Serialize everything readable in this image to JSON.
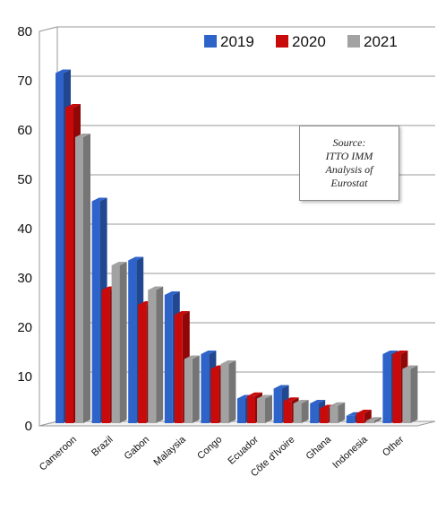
{
  "chart_data": {
    "type": "bar",
    "categories": [
      "Cameroon",
      "Brazil",
      "Gabon",
      "Malaysia",
      "Congo",
      "Ecuador",
      "Côte d'Ivoire",
      "Ghana",
      "Indonesia",
      "Other"
    ],
    "series": [
      {
        "name": "2019",
        "color": "#2e63c9",
        "values": [
          71,
          45,
          33,
          26,
          14,
          5,
          7,
          4,
          1.5,
          14
        ]
      },
      {
        "name": "2020",
        "color": "#c80a0a",
        "values": [
          64,
          27,
          24,
          22,
          11,
          5.5,
          4.5,
          3,
          2,
          14
        ]
      },
      {
        "name": "2021",
        "color": "#a2a2a2",
        "values": [
          58,
          32,
          27,
          13,
          12,
          5,
          4,
          3.5,
          0.5,
          11
        ]
      }
    ],
    "ylim": [
      0,
      80
    ],
    "yticks": [
      0,
      10,
      20,
      30,
      40,
      50,
      60,
      70,
      80
    ],
    "legend_position": "top-right",
    "annotation": "Source:\nITTO IMM\nAnalysis of\nEurostat",
    "grid": true
  }
}
